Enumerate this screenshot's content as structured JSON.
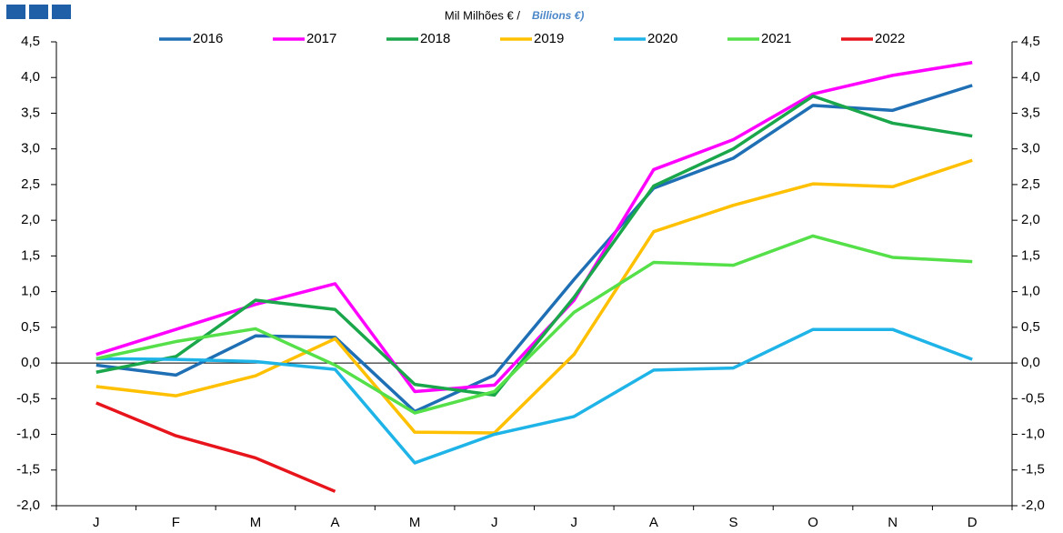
{
  "chart_data": {
    "type": "line",
    "title": "Mil Milhões € /",
    "subtitle": "Billions €)",
    "categories": [
      "J",
      "F",
      "M",
      "A",
      "M",
      "J",
      "J",
      "A",
      "S",
      "O",
      "N",
      "D"
    ],
    "ylim": [
      -2.0,
      4.5
    ],
    "yticks": [
      {
        "value": -2.0,
        "label": "-2,0"
      },
      {
        "value": -1.5,
        "label": "-1,5"
      },
      {
        "value": -1.0,
        "label": "-1,0"
      },
      {
        "value": -0.5,
        "label": "-0,5"
      },
      {
        "value": 0.0,
        "label": "0,0"
      },
      {
        "value": 0.5,
        "label": "0,5"
      },
      {
        "value": 1.0,
        "label": "1,0"
      },
      {
        "value": 1.5,
        "label": "1,5"
      },
      {
        "value": 2.0,
        "label": "2,0"
      },
      {
        "value": 2.5,
        "label": "2,5"
      },
      {
        "value": 3.0,
        "label": "3,0"
      },
      {
        "value": 3.5,
        "label": "3,5"
      },
      {
        "value": 4.0,
        "label": "4,0"
      },
      {
        "value": 4.5,
        "label": "4,5"
      }
    ],
    "series": [
      {
        "name": "2016",
        "color": "#1f6fb5",
        "values": [
          -0.03,
          -0.17,
          0.38,
          0.36,
          -0.68,
          -0.17,
          1.17,
          2.45,
          2.87,
          3.61,
          3.54,
          3.89
        ]
      },
      {
        "name": "2017",
        "color": "#ff00ff",
        "values": [
          0.12,
          0.47,
          0.82,
          1.11,
          -0.4,
          -0.31,
          0.88,
          2.71,
          3.13,
          3.77,
          4.03,
          4.21
        ]
      },
      {
        "name": "2018",
        "color": "#1aa64a",
        "values": [
          -0.13,
          0.09,
          0.88,
          0.75,
          -0.3,
          -0.45,
          0.92,
          2.48,
          3.0,
          3.74,
          3.36,
          3.18
        ]
      },
      {
        "name": "2019",
        "color": "#ffc000",
        "values": [
          -0.33,
          -0.46,
          -0.18,
          0.34,
          -0.97,
          -0.98,
          0.12,
          1.84,
          2.21,
          2.51,
          2.47,
          2.84
        ]
      },
      {
        "name": "2020",
        "color": "#1fb4e8",
        "values": [
          0.06,
          0.05,
          0.02,
          -0.09,
          -1.4,
          -1.0,
          -0.75,
          -0.1,
          -0.07,
          0.47,
          0.47,
          0.05
        ]
      },
      {
        "name": "2021",
        "color": "#55e04a",
        "values": [
          0.06,
          0.3,
          0.48,
          -0.03,
          -0.7,
          -0.4,
          0.71,
          1.41,
          1.37,
          1.78,
          1.48,
          1.42
        ]
      },
      {
        "name": "2022",
        "color": "#e8141b",
        "values": [
          -0.56,
          -1.02,
          -1.33,
          -1.8,
          null,
          null,
          null,
          null,
          null,
          null,
          null,
          null
        ]
      }
    ],
    "legend": "top"
  }
}
